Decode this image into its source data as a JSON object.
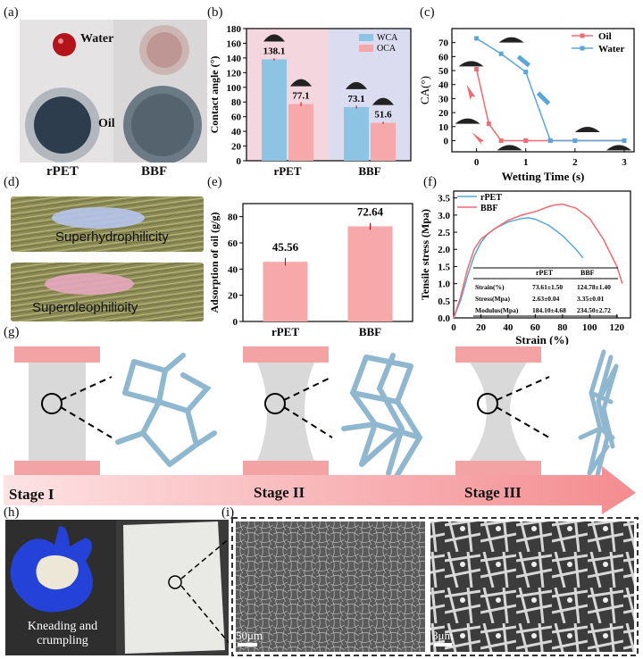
{
  "panel_labels": {
    "a": "(a)",
    "b": "(b)",
    "c": "(c)",
    "d": "(d)",
    "e": "(e)",
    "f": "(f)",
    "g": "(g)",
    "h": "(h)",
    "i": "(i)"
  },
  "panel_a": {
    "water": "Water",
    "oil": "Oil",
    "left": "rPET",
    "right": "BBF"
  },
  "panel_d": {
    "top": "Superhydrophilicity",
    "bottom": "Superoleophilioity"
  },
  "panel_g": {
    "stages": [
      "Stage I",
      "Stage II",
      "Stage III"
    ]
  },
  "panel_h": {
    "caption_line1": "Kneading and",
    "caption_line2": "crumpling"
  },
  "panel_i": {
    "scale_left": "50μm",
    "scale_right": "3μm"
  },
  "colors": {
    "blue": "#8dc3e3",
    "pink": "#f6a8aa",
    "oil_line": "#f06b72",
    "water_line": "#5aa6d8",
    "bg_pink": "#f4d6de",
    "bg_blue": "#dcdcf0"
  },
  "chart_data": [
    {
      "id": "b",
      "type": "bar",
      "categories": [
        "rPET",
        "BBF"
      ],
      "series": [
        {
          "name": "WCA",
          "values": [
            138.1,
            73.1
          ]
        },
        {
          "name": "OCA",
          "values": [
            77.1,
            51.6
          ]
        }
      ],
      "data_labels": [
        "138.1",
        "77.1",
        "73.1",
        "51.6"
      ],
      "ylabel": "Contact angle (°)",
      "ylim": [
        0,
        180
      ],
      "yticks": [
        0,
        20,
        40,
        60,
        80,
        100,
        120,
        140,
        160,
        180
      ],
      "legend": "top-right"
    },
    {
      "id": "c",
      "type": "line",
      "xlabel": "Wetting Time (s)",
      "ylabel": "CA(°)",
      "xlim": [
        -0.5,
        3.2
      ],
      "ylim": [
        -8,
        80
      ],
      "xticks": [
        0,
        1,
        2,
        3
      ],
      "yticks": [
        0,
        10,
        20,
        30,
        40,
        50,
        60,
        70
      ],
      "series": [
        {
          "name": "Oil",
          "x": [
            0,
            0.25,
            0.5,
            1,
            1.5,
            2,
            3
          ],
          "y": [
            51,
            12,
            0,
            0,
            0,
            0,
            0
          ]
        },
        {
          "name": "Water",
          "x": [
            0,
            0.5,
            1,
            1.5,
            2,
            3
          ],
          "y": [
            73,
            62,
            49,
            0,
            0,
            0
          ]
        }
      ],
      "legend": "top-right"
    },
    {
      "id": "e",
      "type": "bar",
      "categories": [
        "rPET",
        "BBF"
      ],
      "values": [
        45.56,
        72.64
      ],
      "data_labels": [
        "45.56",
        "72.64"
      ],
      "ylabel": "Adsorption of oil (g/g)",
      "ylim": [
        0,
        90
      ],
      "yticks": [
        0,
        20,
        40,
        60,
        80
      ]
    },
    {
      "id": "f",
      "type": "line",
      "xlabel": "Strain (%)",
      "ylabel": "Tensile stress (Mpa)",
      "xlim": [
        0,
        130
      ],
      "ylim": [
        0,
        3.7
      ],
      "xticks": [
        0,
        20,
        40,
        60,
        80,
        100,
        120
      ],
      "yticks": [
        0.0,
        0.5,
        1.0,
        1.5,
        2.0,
        2.5,
        3.0,
        3.5
      ],
      "series": [
        {
          "name": "rPET",
          "x": [
            0,
            5,
            10,
            15,
            20,
            25,
            30,
            40,
            50,
            55,
            60,
            70,
            80,
            90,
            95
          ],
          "y": [
            0,
            0.5,
            1.2,
            1.8,
            2.2,
            2.45,
            2.6,
            2.8,
            2.9,
            2.92,
            2.88,
            2.7,
            2.4,
            2.0,
            1.75
          ]
        },
        {
          "name": "BBF",
          "x": [
            0,
            5,
            10,
            15,
            20,
            30,
            40,
            50,
            60,
            70,
            75,
            80,
            90,
            100,
            110,
            120,
            124
          ],
          "y": [
            0,
            0.6,
            1.4,
            2.0,
            2.3,
            2.6,
            2.85,
            3.0,
            3.1,
            3.25,
            3.3,
            3.32,
            3.2,
            2.9,
            2.3,
            1.5,
            1.0
          ]
        }
      ],
      "legend": "top-left",
      "table": {
        "headers": [
          "",
          "rPET",
          "BBF"
        ],
        "rows": [
          [
            "Strain(%)",
            "73.61±1.50",
            "124.78±1.40"
          ],
          [
            "Stress(Mpa)",
            "2.63±0.04",
            "3.35±0.01"
          ],
          [
            "Modulus(Mpa)",
            "184.10±4.68",
            "234.50±2.72"
          ]
        ]
      }
    }
  ]
}
